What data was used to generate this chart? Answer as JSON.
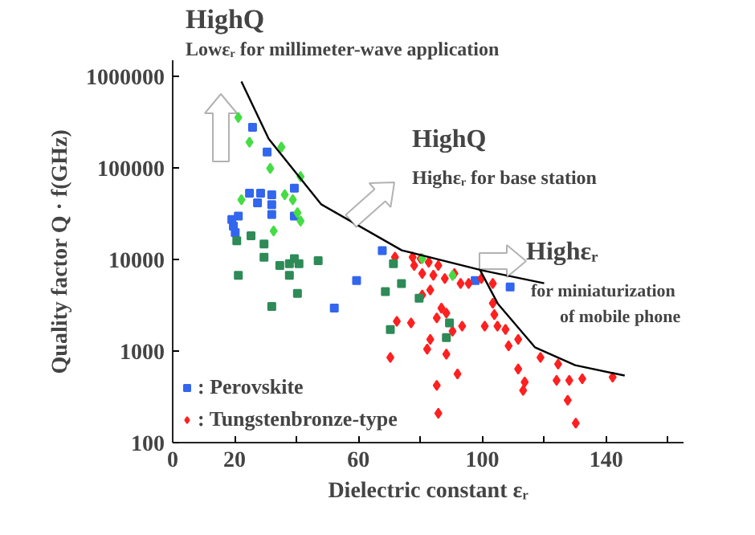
{
  "chart_data": {
    "type": "scatter",
    "xlabel": "Dielectric constant εᵣ",
    "ylabel": "Quality factor Q · f(GHz)",
    "log": "y",
    "xlim": [
      0,
      165
    ],
    "ylim": [
      100,
      1500000
    ],
    "xticks": [
      0,
      20,
      {
        "value": 40,
        "label": null
      },
      60,
      {
        "value": 80,
        "label": null
      },
      100,
      {
        "value": 120,
        "label": null
      },
      140,
      {
        "value": 160,
        "label": null
      }
    ],
    "yticks": [
      100,
      1000,
      10000,
      100000,
      1000000
    ],
    "grid": false,
    "legend": "bottom left",
    "annotations": [
      "HighQ",
      "Lowεᵣ for millimeter-wave application",
      "HighQ",
      "Highεᵣ for base station",
      "Highεᵣ",
      "for miniaturization",
      "of mobile phone"
    ],
    "series": [
      {
        "name": ": Perovskite",
        "color": "#3366ee",
        "marker": "square",
        "x": [
          25.8,
          30.5,
          39.3,
          24.8,
          28.4,
          32.0,
          27.4,
          32.0,
          32.0,
          39.3,
          21.2,
          19.1,
          19.6,
          20.2,
          67.7,
          59.4,
          52.2,
          97.7,
          109
        ],
        "values": [
          277000,
          149000,
          60100,
          53100,
          53100,
          51000,
          41500,
          39800,
          31000,
          29800,
          29800,
          27400,
          23200,
          19700,
          12500,
          5900,
          2950,
          5900,
          5000
        ]
      },
      {
        "name": ": Tungstenbronze-type",
        "color": "#ff2020",
        "marker": "diamond",
        "x": [
          71.8,
          77.5,
          80.1,
          78.0,
          82.7,
          85.8,
          80.6,
          84.2,
          87.9,
          91.0,
          93.0,
          95.6,
          99.7,
          103.4,
          83.2,
          80.6,
          86.8,
          88.4,
          85.3,
          93.5,
          90.4,
          72.4,
          77.0,
          83.2,
          82.2,
          88.4,
          70.3,
          92.0,
          85.3,
          100.8,
          103.9,
          103.4,
          104.9,
          107.5,
          108.5,
          111.6,
          118.8,
          124.5,
          111.6,
          113.7,
          113.2,
          124.0,
          128.1,
          132.3,
          142.1,
          127.6,
          130.2,
          85.8
        ],
        "values": [
          10600,
          10600,
          10200,
          8600,
          9350,
          8600,
          7020,
          6730,
          6200,
          7020,
          5470,
          5470,
          6200,
          5470,
          4640,
          4090,
          2940,
          2600,
          2300,
          1870,
          1650,
          2110,
          2030,
          1340,
          1050,
          925,
          850,
          562,
          422,
          1870,
          2500,
          3330,
          1870,
          1720,
          1140,
          1340,
          850,
          721,
          637,
          458,
          372,
          478,
          478,
          498,
          519,
          290,
          163,
          209
        ]
      },
      {
        "color": "#44dd44",
        "marker": "diamond",
        "x": [
          21.2,
          24.8,
          35.1,
          31.5,
          41.3,
          22.2,
          36.2,
          38.8,
          40.3,
          41.3,
          32.6,
          80.6,
          90.4
        ],
        "values": [
          356000,
          191000,
          169000,
          98900,
          80400,
          45000,
          51000,
          45000,
          32400,
          26300,
          20500,
          10200,
          6700
        ]
      },
      {
        "color": "#2e8b57",
        "marker": "square",
        "x": [
          20.7,
          25.3,
          29.5,
          29.5,
          34.6,
          37.7,
          40.8,
          39.3,
          47.0,
          37.7,
          21.2,
          40.3,
          32.0,
          71.3,
          68.7,
          73.9,
          79.6,
          89.4,
          70.3,
          88.4
        ],
        "values": [
          16000,
          18200,
          14800,
          10600,
          8600,
          9000,
          9000,
          10200,
          9700,
          6700,
          6700,
          4270,
          3070,
          9000,
          4450,
          5470,
          3770,
          2030,
          1720,
          1400
        ]
      },
      {
        "type": "line",
        "color": "#000000",
        "x": [
          22.2,
          31,
          48,
          74,
          100,
          120
        ],
        "values": [
          880000,
          208000,
          40000,
          12600,
          7600,
          5500
        ]
      },
      {
        "type": "line",
        "color": "#000000",
        "x": [
          99,
          105,
          117,
          130,
          146
        ],
        "values": [
          8000,
          3300,
          1100,
          700,
          540
        ]
      }
    ]
  }
}
